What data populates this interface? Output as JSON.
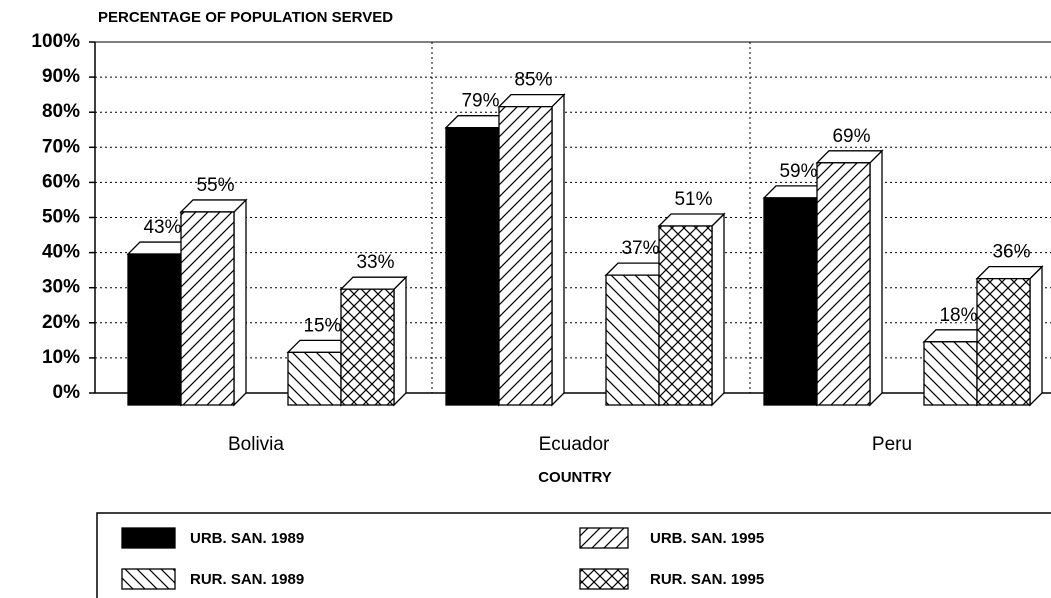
{
  "chart_data": {
    "type": "bar3d",
    "title": "PERCENTAGE OF POPULATION SERVED",
    "x_label": "COUNTRY",
    "categories": [
      "Bolivia",
      "Ecuador",
      "Peru"
    ],
    "series": [
      {
        "name": "URB. SAN. 1989",
        "color": "#000000",
        "pattern": "solid",
        "values": [
          43,
          79,
          59
        ],
        "value_labels": [
          "43%",
          "79%",
          "59%"
        ]
      },
      {
        "name": "URB. SAN. 1995",
        "color": "#000000",
        "pattern": "forward-hatch",
        "values": [
          55,
          85,
          69
        ],
        "value_labels": [
          "55%",
          "85%",
          "69%"
        ]
      },
      {
        "name": "RUR. SAN. 1989",
        "color": "#000000",
        "pattern": "back-hatch",
        "values": [
          15,
          37,
          18
        ],
        "value_labels": [
          "15%",
          "37%",
          "18%"
        ]
      },
      {
        "name": "RUR. SAN. 1995",
        "color": "#000000",
        "pattern": "cross-hatch",
        "values": [
          33,
          51,
          36
        ],
        "value_labels": [
          "33%",
          "51%",
          "36%"
        ]
      }
    ],
    "ylim": [
      0,
      100
    ],
    "yticks": [
      {
        "value": 0,
        "label": "0%"
      },
      {
        "value": 10,
        "label": "10%"
      },
      {
        "value": 20,
        "label": "20%"
      },
      {
        "value": 30,
        "label": "30%"
      },
      {
        "value": 40,
        "label": "40%"
      },
      {
        "value": 50,
        "label": "50%"
      },
      {
        "value": 60,
        "label": "60%"
      },
      {
        "value": 70,
        "label": "70%"
      },
      {
        "value": 80,
        "label": "80%"
      },
      {
        "value": 90,
        "label": "90%"
      },
      {
        "value": 100,
        "label": "100%"
      }
    ],
    "grid": true,
    "legend": "bottom"
  }
}
